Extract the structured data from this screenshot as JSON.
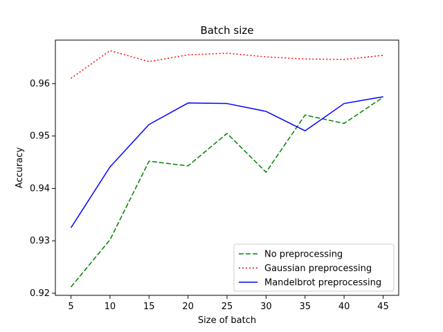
{
  "chart_data": {
    "type": "line",
    "title": "Batch size",
    "xlabel": "Size of batch",
    "ylabel": "Accuracy",
    "x": [
      5,
      10,
      15,
      20,
      25,
      30,
      35,
      40,
      45
    ],
    "xticks": [
      5,
      10,
      15,
      20,
      25,
      30,
      35,
      40,
      45
    ],
    "xtick_labels": [
      "5",
      "10",
      "15",
      "20",
      "25",
      "30",
      "35",
      "40",
      "45"
    ],
    "yticks": [
      0.92,
      0.93,
      0.94,
      0.95,
      0.96
    ],
    "ytick_labels": [
      "0.92",
      "0.93",
      "0.94",
      "0.95",
      "0.96"
    ],
    "xlim": [
      3,
      47
    ],
    "ylim": [
      0.9196,
      0.9683
    ],
    "grid": false,
    "legend_position": "lower-right",
    "series": [
      {
        "name": "No preprocessing",
        "color": "#008000",
        "dash": "dashed",
        "values": [
          0.9212,
          0.9302,
          0.9452,
          0.9443,
          0.9505,
          0.9431,
          0.954,
          0.9524,
          0.9574
        ]
      },
      {
        "name": "Gaussian preprocessing",
        "color": "#ff0000",
        "dash": "dotted",
        "values": [
          0.961,
          0.9663,
          0.9642,
          0.9655,
          0.9658,
          0.9651,
          0.9647,
          0.9646,
          0.9654
        ]
      },
      {
        "name": "Mandelbrot preprocessing",
        "color": "#0000ff",
        "dash": "solid",
        "values": [
          0.9325,
          0.9441,
          0.9522,
          0.9563,
          0.9562,
          0.9547,
          0.951,
          0.9562,
          0.9575
        ]
      }
    ]
  }
}
